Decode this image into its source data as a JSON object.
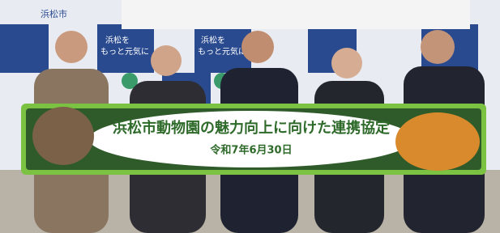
{
  "backdrop": {
    "logo": "浜松市",
    "slogan_line1": "浜松を",
    "slogan_line2": "もっと元気に"
  },
  "banner": {
    "title": "浜松市動物園の魅力向上に向けた連携協定",
    "date": "令和7年6月30日"
  }
}
